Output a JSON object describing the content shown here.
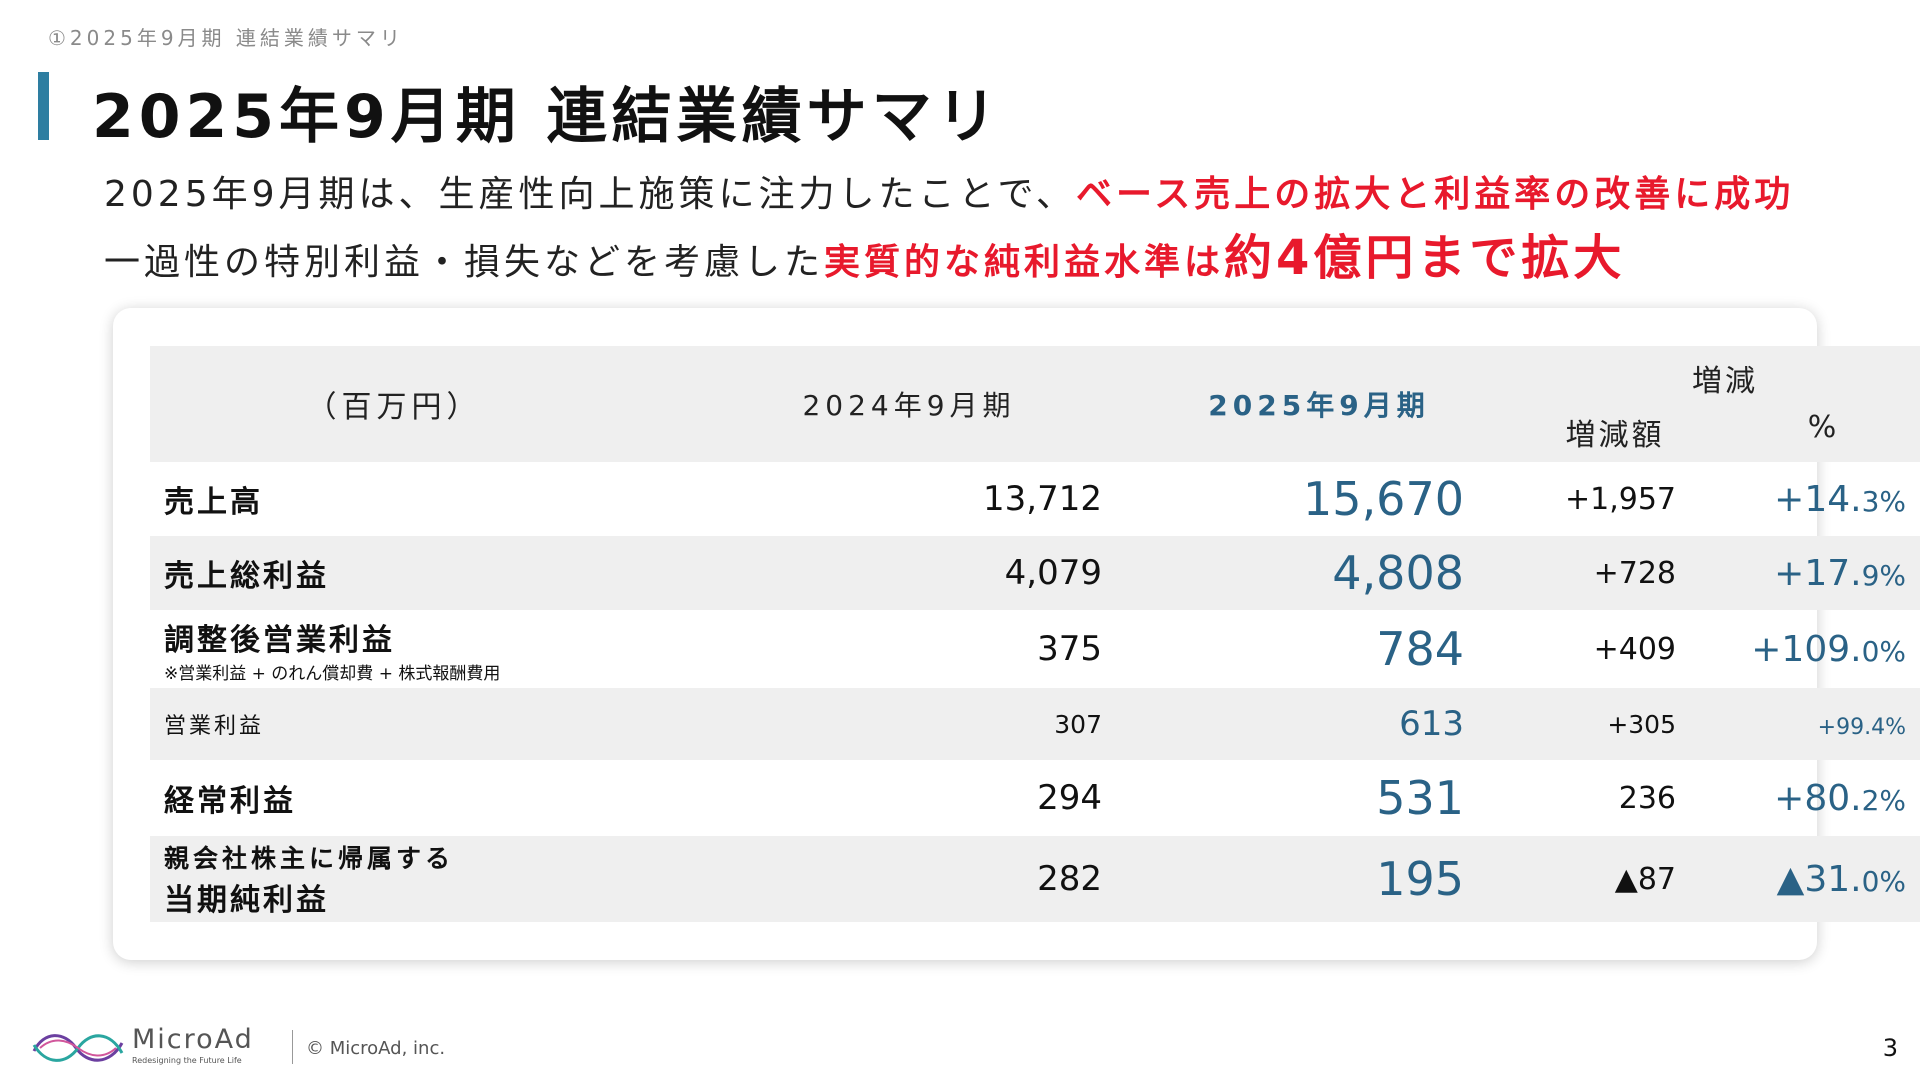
{
  "breadcrumb": "①2025年9月期 連結業績サマリ",
  "title": "2025年9月期 連結業績サマリ",
  "lead": {
    "line1_plain": "2025年9月期は、生産性向上施策に注力したことで、",
    "line1_emph": "ベース売上の拡大と利益率の改善に成功",
    "line2_plain": "一過性の特別利益・損失などを考慮した",
    "line2_emph": "実質的な純利益水準は",
    "line2_emph_big": "約4億円まで拡大"
  },
  "table": {
    "header": {
      "unit": "（百万円）",
      "col_2024": "2024年9月期",
      "col_2025": "2025年9月期",
      "change": "増減",
      "amount": "増減額",
      "percent": "%"
    },
    "rows": [
      {
        "label": "売上高",
        "note": "",
        "v2024": "13,712",
        "v2025": "15,670",
        "diff": "+1,957",
        "pct_int": "+14.",
        "pct_dec": "3%"
      },
      {
        "label": "売上総利益",
        "note": "",
        "v2024": "4,079",
        "v2025": "4,808",
        "diff": "+728",
        "pct_int": "+17.",
        "pct_dec": "9%"
      },
      {
        "label": "調整後営業利益",
        "note": "※営業利益 + のれん償却費 + 株式報酬費用",
        "v2024": "375",
        "v2025": "784",
        "diff": "+409",
        "pct_int": "+109.",
        "pct_dec": "0%"
      },
      {
        "label": "営業利益",
        "note": "",
        "v2024": "307",
        "v2025": "613",
        "diff": "+305",
        "pct_int": "+99.4%",
        "pct_dec": ""
      },
      {
        "label": "経常利益",
        "note": "",
        "v2024": "294",
        "v2025": "531",
        "diff": "236",
        "pct_int": "+80.",
        "pct_dec": "2%"
      },
      {
        "label_top": "親会社株主に帰属する",
        "label": "当期純利益",
        "v2024": "282",
        "v2025": "195",
        "diff": "▲87",
        "pct_int": "▲31.",
        "pct_dec": "0%"
      }
    ]
  },
  "footer": {
    "logo_name": "MicroAd",
    "logo_tagline": "Redesigning the Future Life",
    "copyright": "© MicroAd, inc.",
    "page_number": "3"
  },
  "colors": {
    "accent_blue": "#2e7ea1",
    "value_blue": "#2a6286",
    "emphasis_red": "#e8192c"
  }
}
